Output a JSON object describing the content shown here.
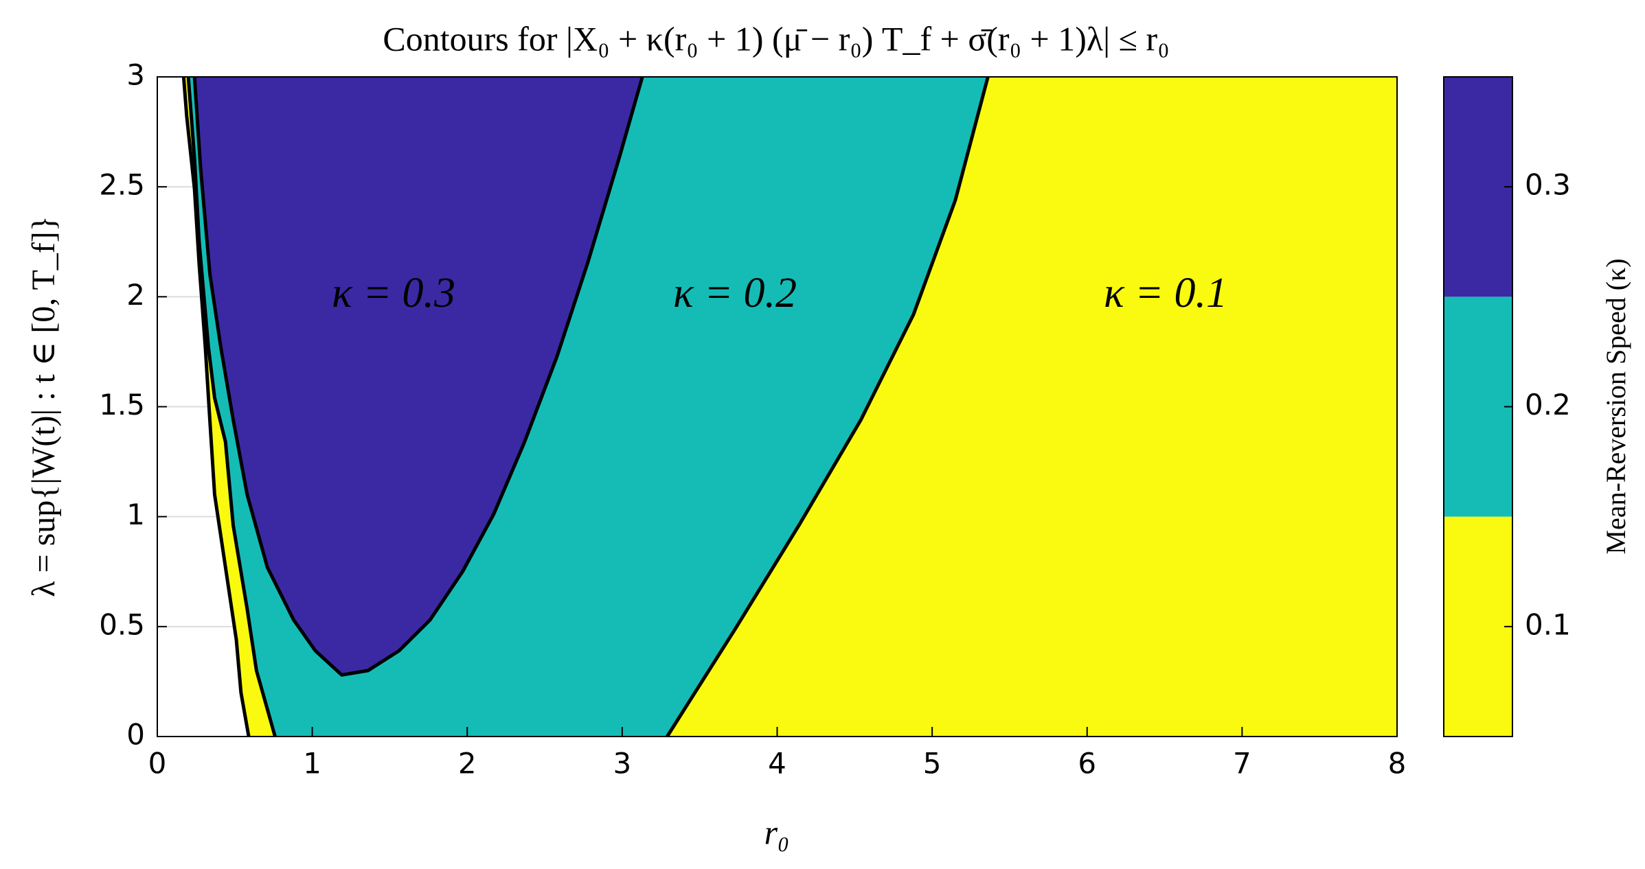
{
  "chart_data": {
    "type": "filled-contour",
    "title": "Contours for |X₀ + κ(r₀ + 1) (μ̄ − r₀) T_f + σ̄(r₀ + 1)λ| ≤ r₀",
    "x_label": "r₀",
    "y_label": "λ = sup{|W(t)| : t ∈ [0, T_f]}",
    "xlim": [
      0,
      8
    ],
    "xticks": [
      0,
      1,
      2,
      3,
      4,
      5,
      6,
      7,
      8
    ],
    "ylim": [
      0,
      3
    ],
    "yticks": [
      0,
      0.5,
      1,
      1.5,
      2,
      2.5,
      3
    ],
    "grid": true,
    "contours": [
      {
        "x": [
          0.17,
          0.19,
          0.24,
          0.27,
          0.31,
          0.34,
          0.37,
          0.44,
          0.51,
          0.54,
          0.59
        ],
        "y": [
          3,
          2.82,
          2.49,
          2.15,
          1.77,
          1.43,
          1.1,
          0.77,
          0.44,
          0.2,
          0
        ]
      },
      {
        "x": [
          0.2,
          0.24,
          0.27,
          0.33,
          0.37,
          0.44,
          0.49,
          0.58,
          0.64,
          0.76
        ],
        "y": [
          3,
          2.63,
          2.25,
          1.77,
          1.54,
          1.34,
          0.96,
          0.58,
          0.3,
          0
        ]
      },
      {
        "x": [
          0.24,
          0.28,
          0.34,
          0.41,
          0.49,
          0.58,
          0.71,
          0.88,
          1.02,
          1.19,
          1.36,
          1.56,
          1.76,
          1.97,
          2.17,
          2.37,
          2.58,
          2.78,
          2.98,
          3.13
        ],
        "y": [
          3,
          2.58,
          2.1,
          1.77,
          1.44,
          1.1,
          0.77,
          0.53,
          0.39,
          0.28,
          0.3,
          0.39,
          0.53,
          0.75,
          1.01,
          1.34,
          1.73,
          2.16,
          2.63,
          3
        ]
      },
      {
        "x": [
          3.29,
          3.73,
          4.14,
          4.54,
          4.88,
          5.15,
          5.36
        ],
        "y": [
          0,
          0.49,
          0.96,
          1.44,
          1.92,
          2.44,
          3
        ]
      }
    ],
    "regions": [
      {
        "name": "κ = 0.1",
        "level": 0.1,
        "color": "#f9fa0f",
        "contours": [
          0
        ],
        "fill_to": "right"
      },
      {
        "name": "κ = 0.2",
        "level": 0.2,
        "color": "#15bcb6",
        "contours": [
          1,
          3
        ]
      },
      {
        "name": "κ = 0.3",
        "level": 0.3,
        "color": "#3b29a3",
        "contours": [
          2
        ]
      }
    ],
    "colorbar": {
      "label": "Mean-Reversion Speed (κ)",
      "lim": [
        0.05,
        0.35
      ],
      "edges": [
        0.05,
        0.15,
        0.25,
        0.35
      ],
      "ticks": [
        0.1,
        0.2,
        0.3
      ]
    }
  }
}
